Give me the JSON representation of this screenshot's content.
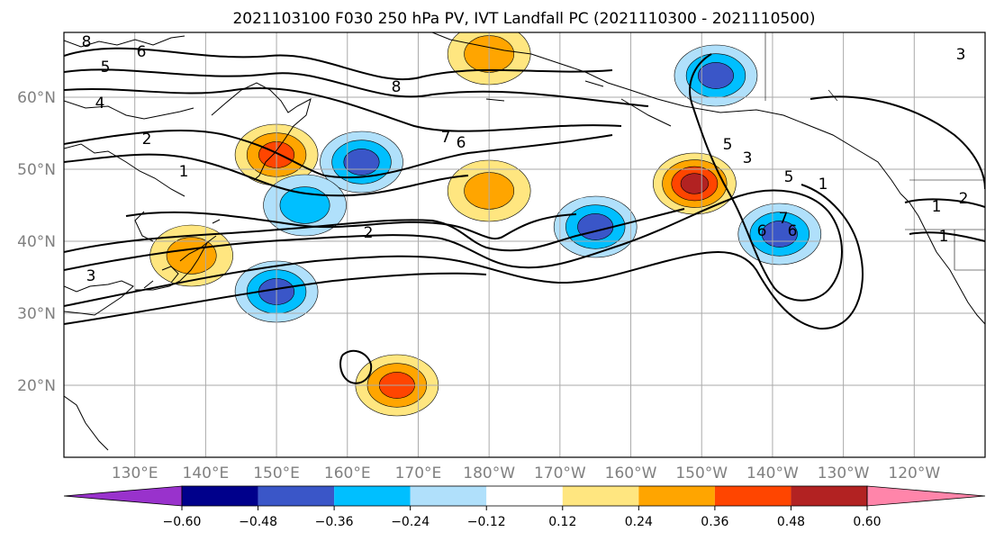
{
  "chart_data": {
    "type": "map",
    "title": "2021103100 F030 250 hPa PV, IVT Landfall PC (2021110300 - 2021110500)",
    "x_ticks": [
      "130°E",
      "140°E",
      "150°E",
      "160°E",
      "170°E",
      "180°W",
      "170°W",
      "160°W",
      "150°W",
      "140°W",
      "130°W",
      "120°W"
    ],
    "y_ticks": [
      "60°N",
      "50°N",
      "40°N",
      "30°N",
      "20°N"
    ],
    "extent_lon_east": [
      120,
      250
    ],
    "extent_lat": [
      10,
      69
    ],
    "grid": true,
    "colorbar": {
      "ticks": [
        "−0.60",
        "−0.48",
        "−0.36",
        "−0.24",
        "−0.12",
        "0.12",
        "0.24",
        "0.36",
        "0.48",
        "0.60"
      ],
      "colors": [
        "#9932cc",
        "#00008b",
        "#3a56c8",
        "#00bfff",
        "#b0e0fb",
        "#ffffff",
        "#ffe680",
        "#ffa500",
        "#ff4500",
        "#b22222",
        "#ff85aa"
      ],
      "extend": "both"
    },
    "contour_labels": [
      "8",
      "6",
      "5",
      "4",
      "2",
      "1",
      "3",
      "6",
      "8",
      "7",
      "6",
      "5",
      "2",
      "1",
      "7",
      "6",
      "5",
      "3",
      "1",
      "2",
      "3",
      "1"
    ],
    "anomaly_regions": [
      {
        "lon": 150,
        "lat": 52,
        "value": 0.45
      },
      {
        "lon": 162,
        "lat": 51,
        "value": -0.45
      },
      {
        "lon": 154,
        "lat": 45,
        "value": -0.3
      },
      {
        "lon": 150,
        "lat": 33,
        "value": -0.45
      },
      {
        "lon": 167,
        "lat": 20,
        "value": 0.4
      },
      {
        "lon": 195,
        "lat": 42,
        "value": -0.45
      },
      {
        "lon": 209,
        "lat": 48,
        "value": 0.5
      },
      {
        "lon": 221,
        "lat": 41,
        "value": -0.45
      },
      {
        "lon": 212,
        "lat": 63,
        "value": -0.45
      },
      {
        "lon": 180,
        "lat": 47,
        "value": 0.35
      },
      {
        "lon": 180,
        "lat": 66,
        "value": 0.3
      },
      {
        "lon": 138,
        "lat": 38,
        "value": 0.35
      }
    ]
  }
}
